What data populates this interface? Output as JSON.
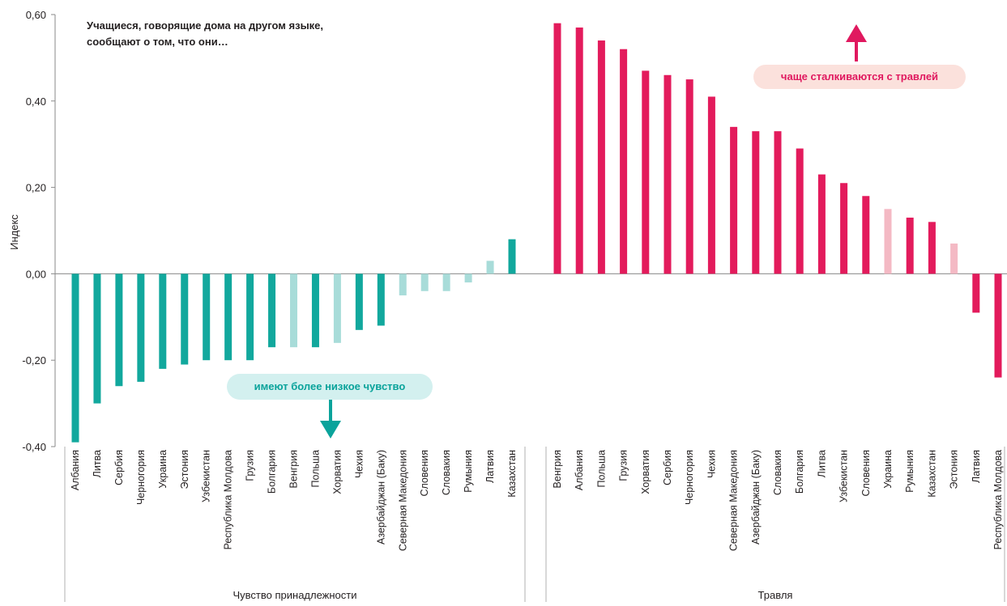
{
  "chart_data": {
    "type": "bar",
    "ylabel": "Индекс",
    "ylim": [
      -0.4,
      0.6
    ],
    "yticks": [
      "-0,40",
      "-0,20",
      "0,00",
      "0,20",
      "0,40",
      "0,60"
    ],
    "grid": false,
    "note": [
      "Учащиеся, говорящие дома на другом языке,",
      "сообщают о том, что они…"
    ],
    "groups": [
      {
        "name": "Чувство  принадлежности",
        "color": "#12a89d",
        "light_color": "#a8dcd9",
        "annotation": "имеют более низкое чувство",
        "categories": [
          "Албания",
          "Литва",
          "Сербия",
          "Черногория",
          "Украина",
          "Эстония",
          "Узбекистан",
          "Республика  Молдова",
          "Грузия",
          "Болгария",
          "Венгрия",
          "Польша",
          "Хорватия",
          "Чехия",
          "Азербайджан  (Баку)",
          "Северная Македония",
          "Словения",
          "Словакия",
          "Румыния",
          "Латвия",
          "Казахстан"
        ],
        "values": [
          -0.39,
          -0.3,
          -0.26,
          -0.25,
          -0.22,
          -0.21,
          -0.2,
          -0.2,
          -0.2,
          -0.17,
          -0.17,
          -0.17,
          -0.16,
          -0.13,
          -0.12,
          -0.05,
          -0.04,
          -0.04,
          -0.02,
          0.03,
          0.08
        ],
        "significant": [
          true,
          true,
          true,
          true,
          true,
          true,
          true,
          true,
          true,
          true,
          false,
          true,
          false,
          true,
          true,
          false,
          false,
          false,
          false,
          false,
          true
        ]
      },
      {
        "name": "Травля",
        "color": "#e31b5c",
        "light_color": "#f4b9c4",
        "annotation": "чаще сталкиваются с травлей",
        "categories": [
          "Венгрия",
          "Албания",
          "Польша",
          "Грузия",
          "Хорватия",
          "Сербия",
          "Черногория",
          "Чехия",
          "Северная  Македония",
          "Азербайджан  (Баку)",
          "Словакия",
          "Болгария",
          "Литва",
          "Узбекистан",
          "Словения",
          "Украина",
          "Румыния",
          "Казахстан",
          "Эстония",
          "Латвия",
          "Республика  Молдова"
        ],
        "values": [
          0.58,
          0.57,
          0.54,
          0.52,
          0.47,
          0.46,
          0.45,
          0.41,
          0.34,
          0.33,
          0.33,
          0.29,
          0.23,
          0.21,
          0.18,
          0.15,
          0.13,
          0.12,
          0.07,
          -0.09,
          -0.24
        ],
        "significant": [
          true,
          true,
          true,
          true,
          true,
          true,
          true,
          true,
          true,
          true,
          true,
          true,
          true,
          true,
          true,
          false,
          true,
          true,
          false,
          true,
          true
        ]
      }
    ]
  }
}
